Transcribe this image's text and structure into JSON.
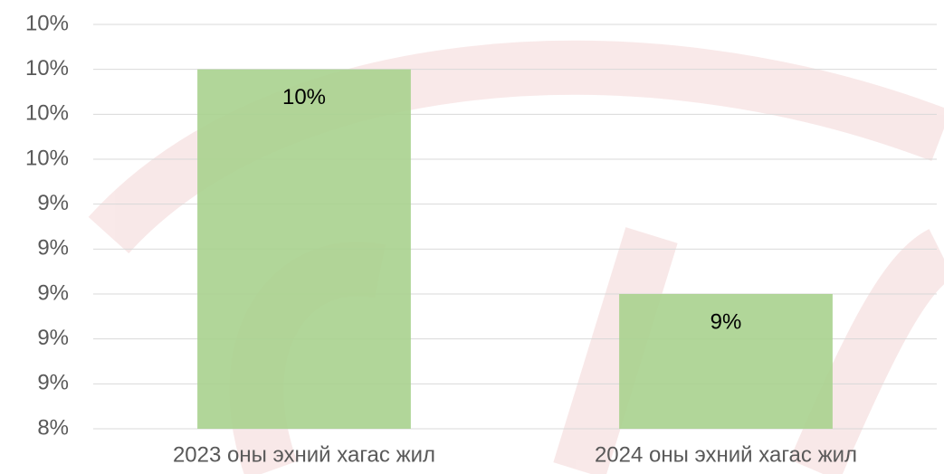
{
  "chart_data": {
    "type": "bar",
    "categories": [
      "2023 оны эхний хагас жил",
      "2024 оны эхний хагас жил"
    ],
    "values": [
      10.0,
      9.0
    ],
    "value_labels": [
      "10%",
      "9%"
    ],
    "color": "#a9d18e",
    "ylim": [
      8.4,
      10.2
    ],
    "yticks": [
      {
        "value": 8.4,
        "label": "8%"
      },
      {
        "value": 8.6,
        "label": "9%"
      },
      {
        "value": 8.8,
        "label": "9%"
      },
      {
        "value": 9.0,
        "label": "9%"
      },
      {
        "value": 9.2,
        "label": "9%"
      },
      {
        "value": 9.4,
        "label": "9%"
      },
      {
        "value": 9.6,
        "label": "10%"
      },
      {
        "value": 9.8,
        "label": "10%"
      },
      {
        "value": 10.0,
        "label": "10%"
      },
      {
        "value": 10.2,
        "label": "10%"
      }
    ],
    "grid": true
  }
}
